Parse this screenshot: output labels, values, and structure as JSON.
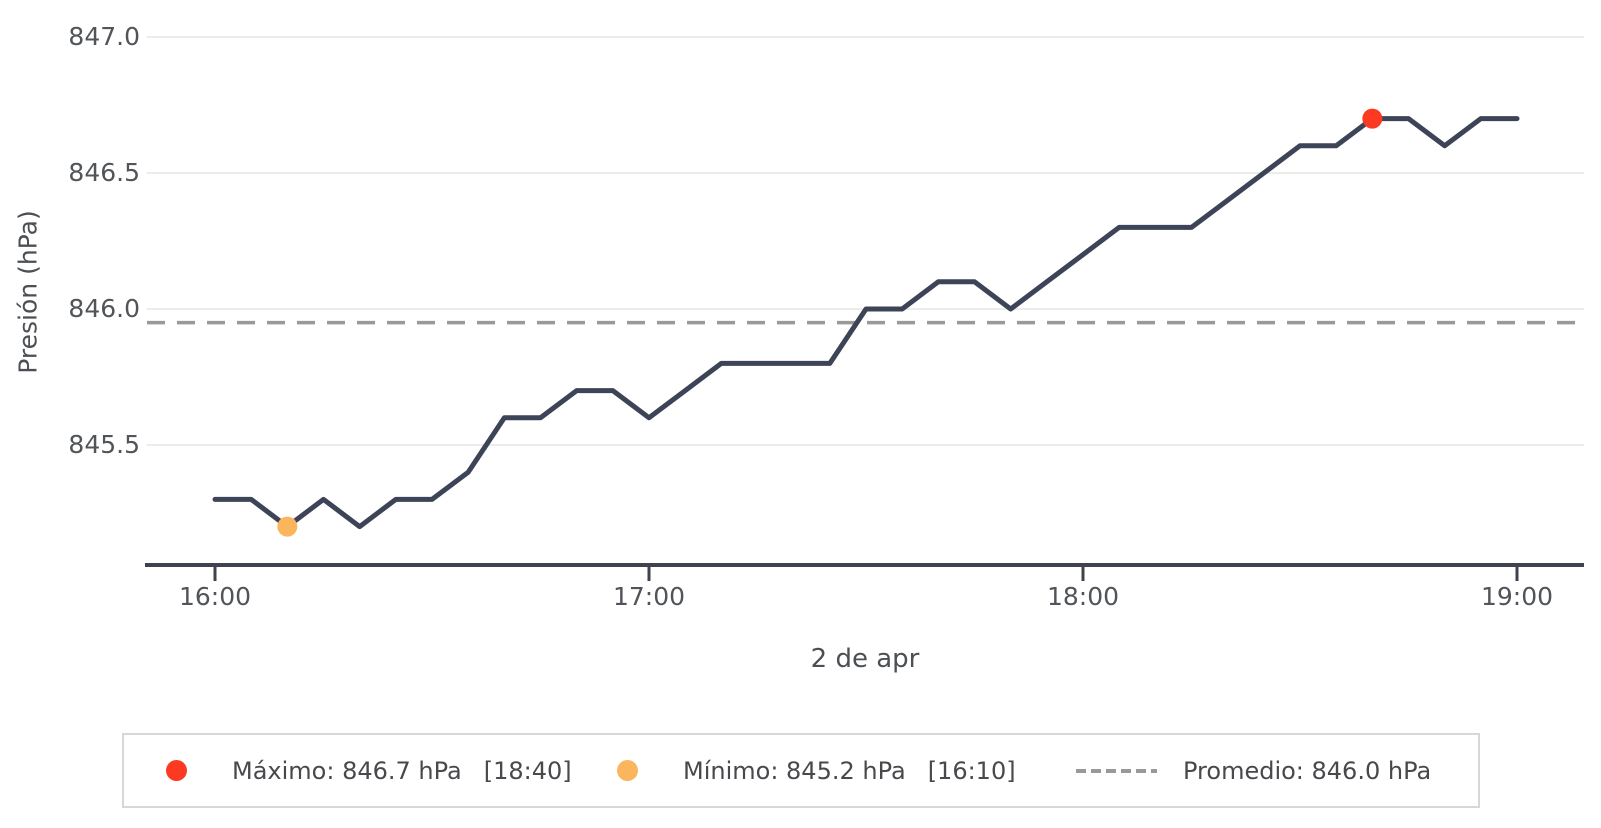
{
  "chart_data": {
    "type": "line",
    "title": "",
    "xlabel": "2 de apr",
    "ylabel": "Presión (hPa)",
    "x_ticks": [
      "16:00",
      "17:00",
      "18:00",
      "19:00"
    ],
    "y_ticks": [
      "847.0",
      "846.5",
      "846.0",
      "845.5"
    ],
    "ylim": [
      845.05,
      847.15
    ],
    "grid": true,
    "legend_position": "bottom",
    "x": [
      "16:00",
      "16:05",
      "16:10",
      "16:15",
      "16:20",
      "16:25",
      "16:30",
      "16:35",
      "16:40",
      "16:45",
      "16:50",
      "16:55",
      "17:00",
      "17:05",
      "17:10",
      "17:15",
      "17:20",
      "17:25",
      "17:30",
      "17:35",
      "17:40",
      "17:45",
      "17:50",
      "17:55",
      "18:00",
      "18:05",
      "18:10",
      "18:15",
      "18:20",
      "18:25",
      "18:30",
      "18:35",
      "18:40",
      "18:45",
      "18:50",
      "18:55",
      "19:00"
    ],
    "series": [
      {
        "name": "Presión",
        "values": [
          845.3,
          845.3,
          845.2,
          845.3,
          845.2,
          845.3,
          845.3,
          845.4,
          845.6,
          845.6,
          845.7,
          845.7,
          845.6,
          845.7,
          845.8,
          845.8,
          845.8,
          845.8,
          846.0,
          846.0,
          846.1,
          846.1,
          846.0,
          846.1,
          846.2,
          846.3,
          846.3,
          846.3,
          846.4,
          846.5,
          846.6,
          846.6,
          846.7,
          846.7,
          846.6,
          846.7,
          846.7
        ]
      }
    ],
    "average_value": 845.95,
    "max": {
      "value": 846.7,
      "time": "18:40"
    },
    "min": {
      "value": 845.2,
      "time": "16:10"
    },
    "colors": {
      "line": "#3e4457",
      "max": "#fb3a21",
      "min": "#fbb55d",
      "average": "#999999",
      "grid": "#ececec",
      "axis": "#3f434e"
    }
  },
  "legend": {
    "max_label": "Máximo: 846.7 hPa",
    "max_time": "[18:40]",
    "min_label": "Mínimo: 845.2 hPa",
    "min_time": "[16:10]",
    "avg_label": "Promedio: 846.0 hPa"
  }
}
